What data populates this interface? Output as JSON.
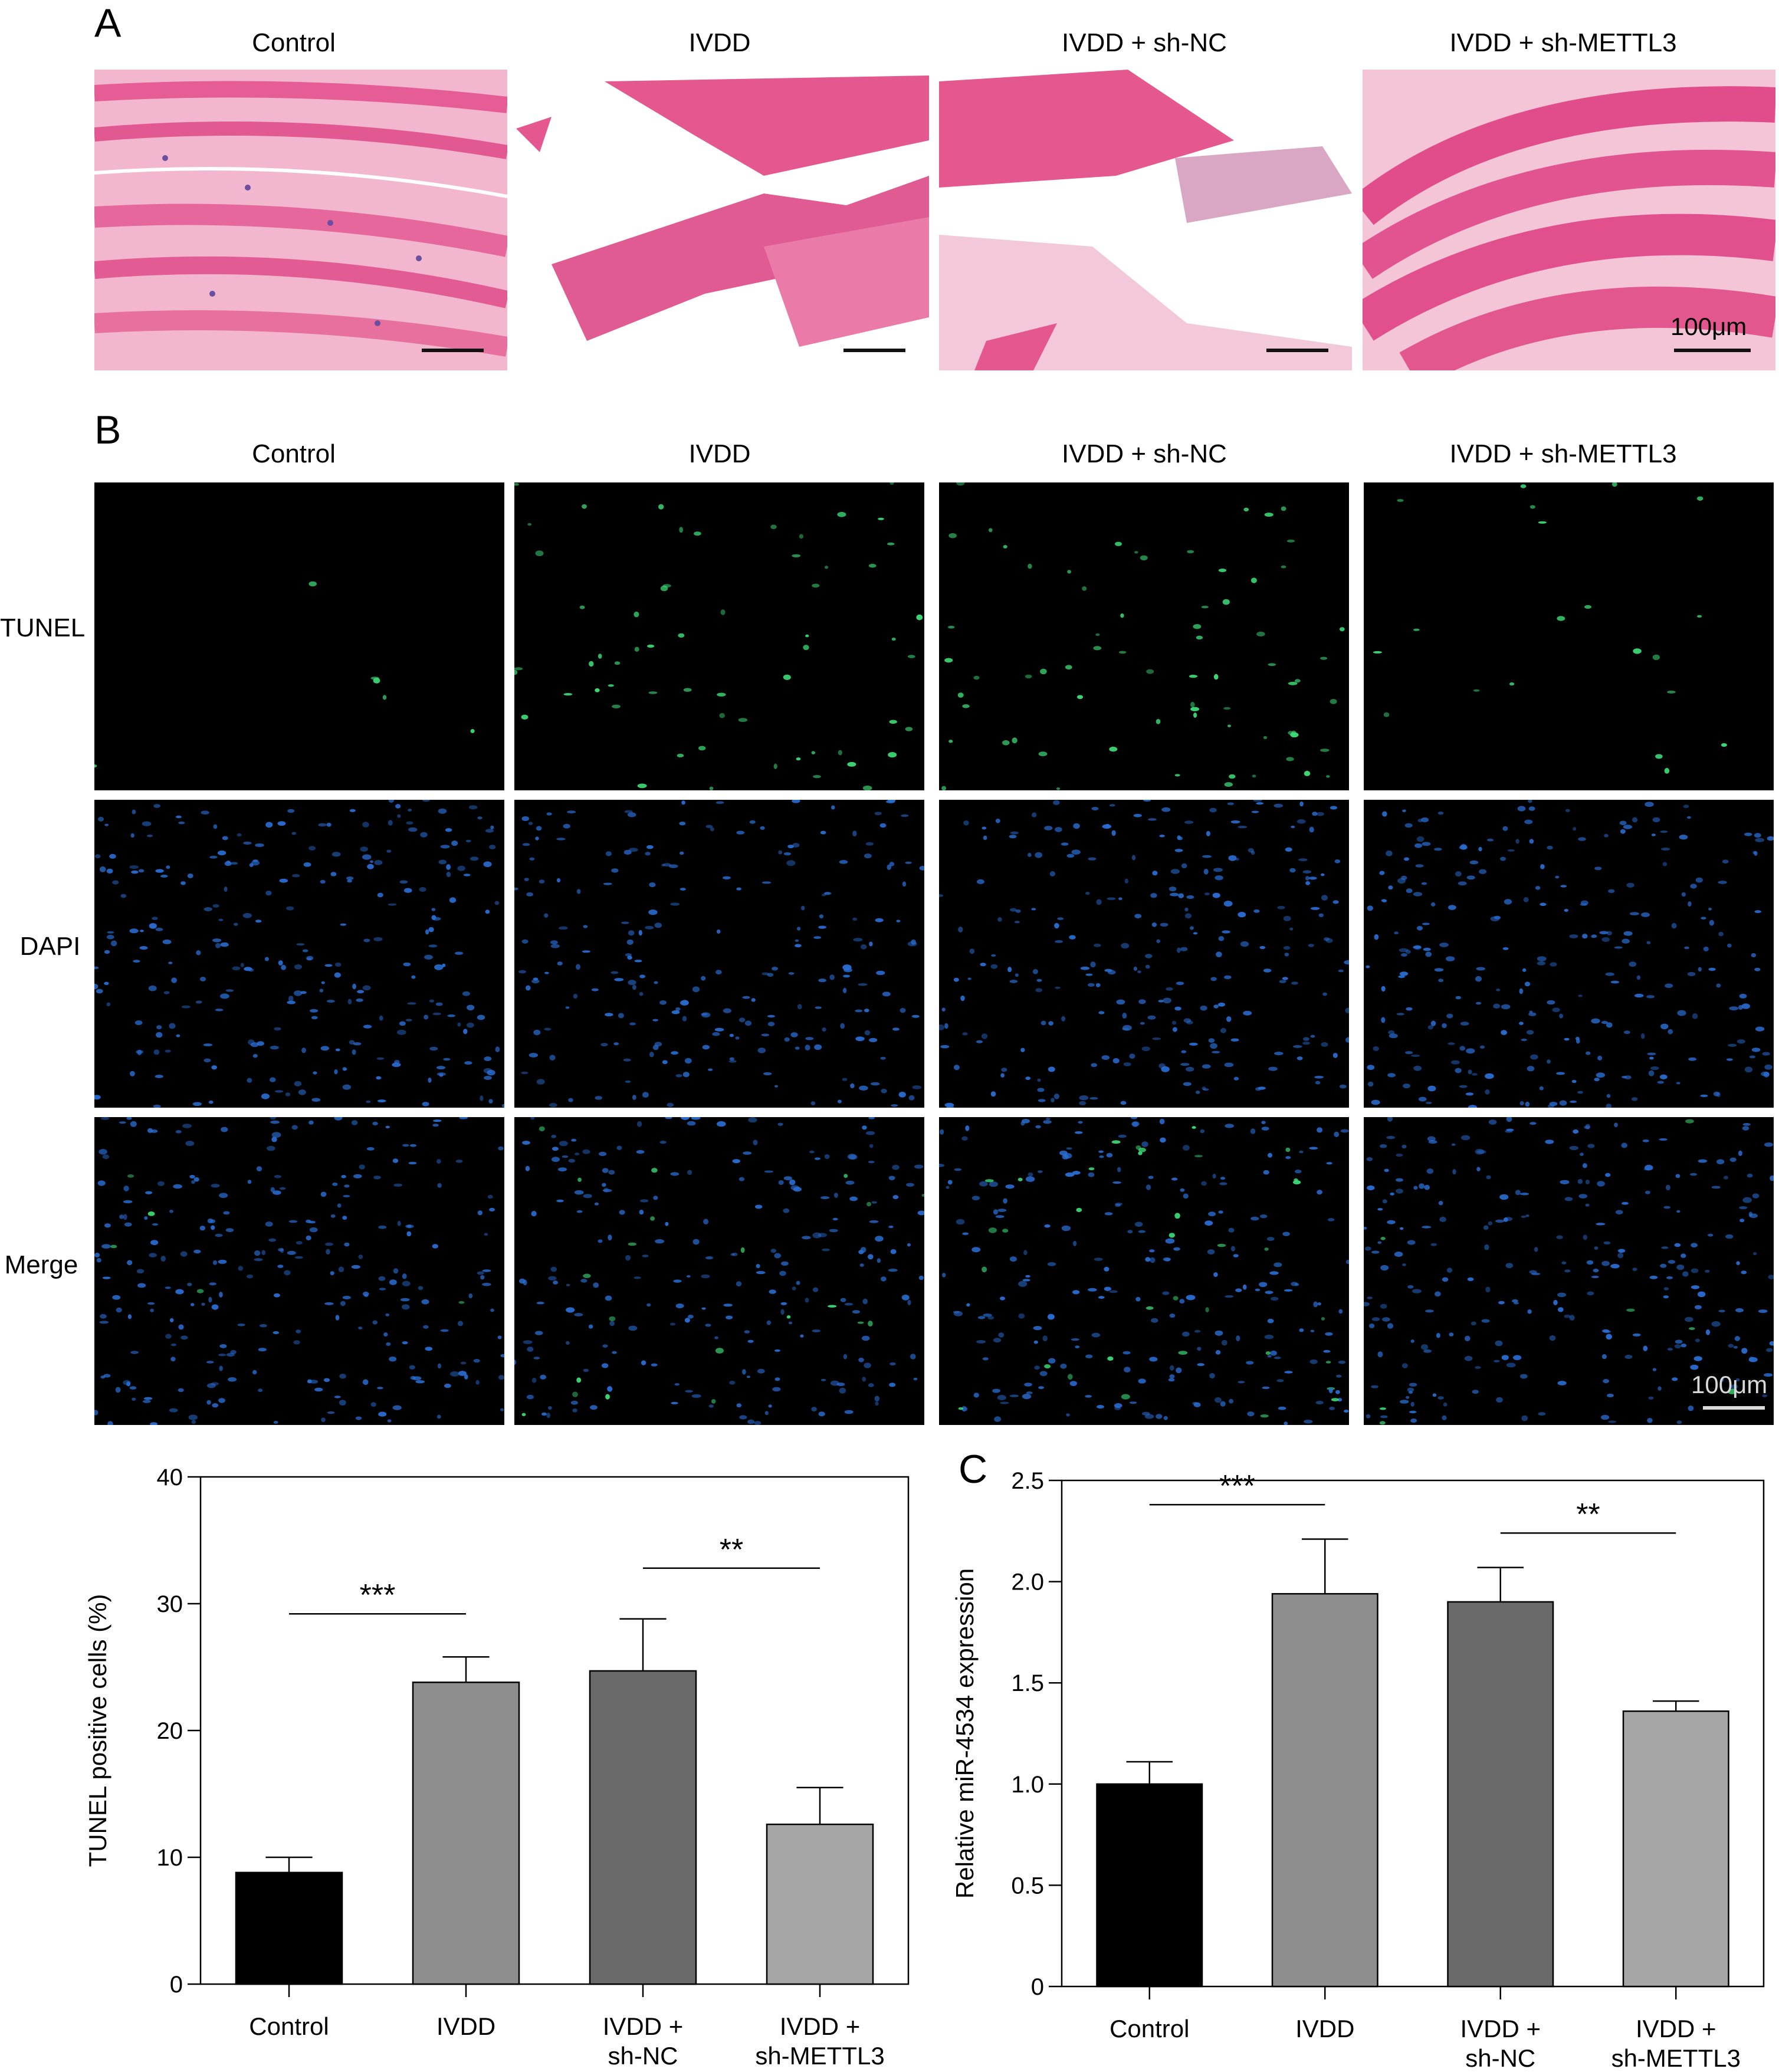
{
  "panels": {
    "a": "A",
    "b": "B",
    "c": "C"
  },
  "groups": [
    "Control",
    "IVDD",
    "IVDD + sh-NC",
    "IVDD + sh-METTL3"
  ],
  "rows_b": [
    "TUNEL",
    "DAPI",
    "Merge"
  ],
  "scale_label": "100μm",
  "colors": {
    "tunel_green": "#3fe07a",
    "dapi_blue": "#2a6fd6",
    "he_pink": "#e0508c",
    "he_nuclei": "#6a4fa0"
  },
  "chart_data": [
    {
      "type": "bar",
      "title": "",
      "ylabel": "TUNEL positive cells (%)",
      "xlabel": "",
      "categories": [
        [
          "Control"
        ],
        [
          "IVDD"
        ],
        [
          "IVDD +",
          "sh-NC"
        ],
        [
          "IVDD +",
          "sh-METTL3"
        ]
      ],
      "values": [
        8.8,
        23.8,
        24.7,
        12.6
      ],
      "errors": [
        1.2,
        2.0,
        4.1,
        2.9
      ],
      "colors": [
        "#000000",
        "#8e8e8e",
        "#6a6a6a",
        "#a6a6a6"
      ],
      "ylim": [
        0,
        40
      ],
      "yticks": [
        "0",
        "10",
        "20",
        "30",
        "40"
      ],
      "significance": [
        {
          "from": 0,
          "to": 1,
          "label": "***",
          "y": 29.2
        },
        {
          "from": 2,
          "to": 3,
          "label": "**",
          "y": 32.8
        }
      ]
    },
    {
      "type": "bar",
      "title": "",
      "ylabel": "Relative miR-4534 expression",
      "xlabel": "",
      "categories": [
        [
          "Control"
        ],
        [
          "IVDD"
        ],
        [
          "IVDD +",
          "sh-NC"
        ],
        [
          "IVDD +",
          "sh-METTL3"
        ]
      ],
      "values": [
        1.0,
        1.94,
        1.9,
        1.36
      ],
      "errors": [
        0.11,
        0.27,
        0.17,
        0.05
      ],
      "colors": [
        "#000000",
        "#8e8e8e",
        "#6a6a6a",
        "#a6a6a6"
      ],
      "ylim": [
        0,
        2.5
      ],
      "yticks": [
        "0",
        "0.5",
        "1.0",
        "1.5",
        "2.0",
        "2.5"
      ],
      "significance": [
        {
          "from": 0,
          "to": 1,
          "label": "***",
          "y": 2.38
        },
        {
          "from": 2,
          "to": 3,
          "label": "**",
          "y": 2.24
        }
      ]
    }
  ]
}
